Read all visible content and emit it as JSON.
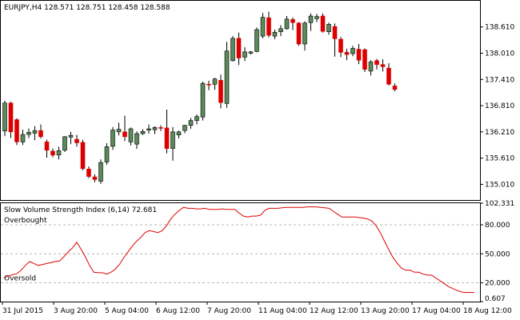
{
  "chart_data": [
    {
      "type": "candlestick",
      "title": "EURJPY,H4  128.571 128.751 128.458 128.588",
      "x_ticks": [
        "31 Jul 2015",
        "3 Aug 20:00",
        "5 Aug 04:00",
        "6 Aug 12:00",
        "7 Aug 20:00",
        "11 Aug 04:00",
        "12 Aug 12:00",
        "13 Aug 20:00",
        "17 Aug 04:00",
        "18 Aug 12:00"
      ],
      "y_ticks": [
        138.61,
        138.01,
        137.41,
        136.81,
        136.21,
        135.61,
        135.01
      ],
      "y_tick_labels": [
        "138.610",
        "138.010",
        "137.410",
        "136.810",
        "136.210",
        "135.610",
        "135.010"
      ],
      "ylim": [
        134.67,
        139.19
      ],
      "colors": {
        "bull": "#5a8a5a",
        "bear": "#dd0000",
        "wick": "#000000"
      },
      "candles": [
        {
          "o": 136.23,
          "h": 136.92,
          "l": 136.11,
          "c": 136.87
        },
        {
          "o": 136.87,
          "h": 136.9,
          "l": 136.07,
          "c": 136.21
        },
        {
          "o": 136.49,
          "h": 136.52,
          "l": 135.91,
          "c": 135.98
        },
        {
          "o": 135.98,
          "h": 136.26,
          "l": 135.91,
          "c": 136.15
        },
        {
          "o": 136.15,
          "h": 136.29,
          "l": 136.07,
          "c": 136.2
        },
        {
          "o": 136.18,
          "h": 136.34,
          "l": 136.02,
          "c": 136.24
        },
        {
          "o": 136.24,
          "h": 136.38,
          "l": 136.06,
          "c": 136.1
        },
        {
          "o": 135.98,
          "h": 136.03,
          "l": 135.62,
          "c": 135.79
        },
        {
          "o": 135.77,
          "h": 135.83,
          "l": 135.63,
          "c": 135.68
        },
        {
          "o": 135.68,
          "h": 135.87,
          "l": 135.58,
          "c": 135.78
        },
        {
          "o": 135.79,
          "h": 136.11,
          "l": 135.75,
          "c": 136.1
        },
        {
          "o": 136.09,
          "h": 136.21,
          "l": 135.93,
          "c": 136.13
        },
        {
          "o": 136.04,
          "h": 136.14,
          "l": 135.87,
          "c": 135.96
        },
        {
          "o": 135.97,
          "h": 136.03,
          "l": 135.33,
          "c": 135.37
        },
        {
          "o": 135.36,
          "h": 135.42,
          "l": 135.15,
          "c": 135.19
        },
        {
          "o": 135.18,
          "h": 135.24,
          "l": 135.06,
          "c": 135.12
        },
        {
          "o": 135.08,
          "h": 135.58,
          "l": 135.02,
          "c": 135.51
        },
        {
          "o": 135.52,
          "h": 135.95,
          "l": 135.46,
          "c": 135.87
        },
        {
          "o": 135.88,
          "h": 136.32,
          "l": 135.8,
          "c": 136.25
        },
        {
          "o": 136.21,
          "h": 136.42,
          "l": 136.13,
          "c": 136.27
        },
        {
          "o": 136.21,
          "h": 136.58,
          "l": 136.0,
          "c": 136.1
        },
        {
          "o": 135.98,
          "h": 136.31,
          "l": 135.9,
          "c": 136.28
        },
        {
          "o": 135.93,
          "h": 136.22,
          "l": 135.82,
          "c": 136.17
        },
        {
          "o": 136.17,
          "h": 136.27,
          "l": 136.14,
          "c": 136.22
        },
        {
          "o": 136.25,
          "h": 136.38,
          "l": 136.17,
          "c": 136.28
        },
        {
          "o": 136.26,
          "h": 136.34,
          "l": 136.16,
          "c": 136.31
        },
        {
          "o": 136.31,
          "h": 136.36,
          "l": 136.23,
          "c": 136.3
        },
        {
          "o": 136.3,
          "h": 136.72,
          "l": 135.72,
          "c": 135.83
        },
        {
          "o": 135.83,
          "h": 136.32,
          "l": 135.55,
          "c": 136.21
        },
        {
          "o": 136.14,
          "h": 136.24,
          "l": 136.06,
          "c": 136.21
        },
        {
          "o": 136.24,
          "h": 136.37,
          "l": 136.18,
          "c": 136.36
        },
        {
          "o": 136.36,
          "h": 136.53,
          "l": 136.28,
          "c": 136.47
        },
        {
          "o": 136.47,
          "h": 136.61,
          "l": 136.38,
          "c": 136.56
        },
        {
          "o": 136.55,
          "h": 137.36,
          "l": 136.47,
          "c": 137.32
        },
        {
          "o": 137.3,
          "h": 137.38,
          "l": 137.16,
          "c": 137.29
        },
        {
          "o": 137.3,
          "h": 137.45,
          "l": 137.17,
          "c": 137.42
        },
        {
          "o": 137.39,
          "h": 137.52,
          "l": 136.75,
          "c": 136.88
        },
        {
          "o": 136.86,
          "h": 138.27,
          "l": 136.76,
          "c": 138.06
        },
        {
          "o": 137.84,
          "h": 138.4,
          "l": 137.82,
          "c": 138.35
        },
        {
          "o": 138.35,
          "h": 138.48,
          "l": 137.74,
          "c": 137.9
        },
        {
          "o": 137.92,
          "h": 138.15,
          "l": 137.83,
          "c": 138.04
        },
        {
          "o": 138.01,
          "h": 138.06,
          "l": 137.98,
          "c": 138.04
        },
        {
          "o": 138.05,
          "h": 138.6,
          "l": 138.03,
          "c": 138.55
        },
        {
          "o": 138.4,
          "h": 138.93,
          "l": 138.35,
          "c": 138.83
        },
        {
          "o": 138.82,
          "h": 138.96,
          "l": 138.37,
          "c": 138.42
        },
        {
          "o": 138.4,
          "h": 138.55,
          "l": 138.33,
          "c": 138.49
        },
        {
          "o": 138.5,
          "h": 138.65,
          "l": 138.4,
          "c": 138.57
        },
        {
          "o": 138.57,
          "h": 138.86,
          "l": 138.55,
          "c": 138.79
        },
        {
          "o": 138.78,
          "h": 138.83,
          "l": 138.54,
          "c": 138.71
        },
        {
          "o": 138.7,
          "h": 138.72,
          "l": 138.18,
          "c": 138.22
        },
        {
          "o": 138.22,
          "h": 138.74,
          "l": 138.07,
          "c": 138.7
        },
        {
          "o": 138.71,
          "h": 138.92,
          "l": 138.52,
          "c": 138.86
        },
        {
          "o": 138.8,
          "h": 138.91,
          "l": 138.72,
          "c": 138.85
        },
        {
          "o": 138.86,
          "h": 138.92,
          "l": 138.48,
          "c": 138.51
        },
        {
          "o": 138.5,
          "h": 138.71,
          "l": 138.43,
          "c": 138.67
        },
        {
          "o": 138.62,
          "h": 138.69,
          "l": 137.93,
          "c": 138.34
        },
        {
          "o": 138.33,
          "h": 138.38,
          "l": 137.92,
          "c": 138.03
        },
        {
          "o": 138.03,
          "h": 138.11,
          "l": 137.85,
          "c": 137.98
        },
        {
          "o": 138.0,
          "h": 138.18,
          "l": 137.94,
          "c": 138.12
        },
        {
          "o": 138.1,
          "h": 138.22,
          "l": 137.76,
          "c": 137.85
        },
        {
          "o": 138.09,
          "h": 138.12,
          "l": 137.58,
          "c": 137.64
        },
        {
          "o": 137.6,
          "h": 137.85,
          "l": 137.5,
          "c": 137.81
        },
        {
          "o": 137.84,
          "h": 137.88,
          "l": 137.64,
          "c": 137.75
        },
        {
          "o": 137.75,
          "h": 137.87,
          "l": 137.59,
          "c": 137.7
        },
        {
          "o": 137.67,
          "h": 137.78,
          "l": 137.27,
          "c": 137.3
        },
        {
          "o": 137.26,
          "h": 137.32,
          "l": 137.14,
          "c": 137.18
        }
      ]
    },
    {
      "type": "line",
      "title": "Slow Volume Strength Index (6,14) 72.681",
      "y_ticks": [
        102.331,
        80.0,
        50.0,
        20.0,
        0.607
      ],
      "y_tick_labels": [
        "102.331",
        "80.000",
        "50.000",
        "20.000",
        "0.607"
      ],
      "ylim": [
        0.607,
        102.331
      ],
      "levels": [
        {
          "value": 80.0,
          "label": "Overbought"
        },
        {
          "value": 50.0,
          "label": ""
        },
        {
          "value": 20.0,
          "label": "Oversold"
        }
      ],
      "series": [
        {
          "color": "#dd0000",
          "values": [
            25,
            27,
            28.5,
            29.5,
            33,
            38,
            42,
            40,
            38,
            39,
            40,
            41,
            42,
            42.5,
            47,
            52,
            56,
            62,
            55,
            47,
            38,
            31,
            30.5,
            30.5,
            29,
            31,
            34,
            39,
            46,
            52,
            58,
            63,
            67,
            72,
            74,
            73,
            72,
            74,
            79,
            86,
            91,
            95,
            98,
            97,
            97,
            96.5,
            96.5,
            97,
            96,
            96,
            96,
            96.5,
            96,
            96,
            96,
            92,
            89,
            88,
            89,
            89,
            90,
            95,
            97,
            97,
            97,
            97.5,
            98,
            98,
            98,
            98,
            98,
            98.5,
            98.5,
            98.5,
            98,
            97.5,
            97,
            94,
            91,
            88,
            88,
            88,
            88,
            87.5,
            87,
            86,
            84,
            79,
            72,
            63,
            54,
            46,
            40,
            35,
            33,
            33,
            31,
            31,
            29,
            28,
            28,
            25,
            22,
            19,
            16,
            14,
            12,
            10.5,
            10,
            10,
            10
          ]
        }
      ]
    }
  ]
}
